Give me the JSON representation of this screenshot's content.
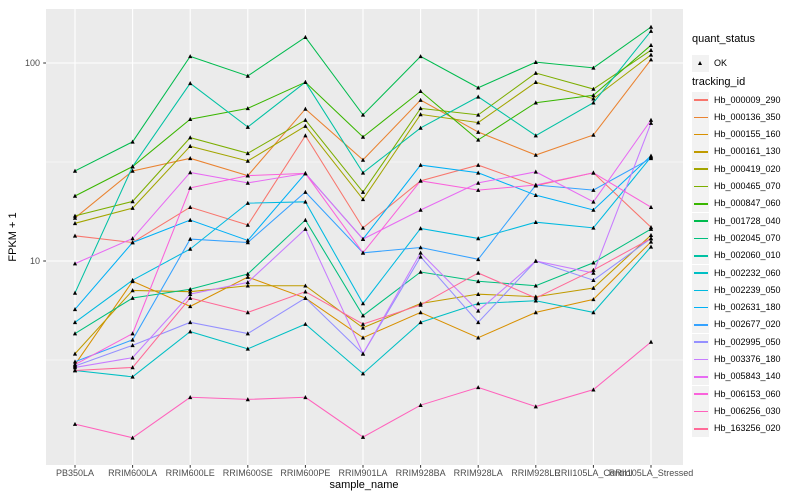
{
  "figure": {
    "background": "#FFFFFF",
    "panel_bg": "#EBEBEB",
    "grid_color": "#FFFFFF",
    "tick_mark_color": "#333333",
    "tick_label_color": "#4D4D4D",
    "point_color": "#000000"
  },
  "chart_data": {
    "type": "line",
    "title": "",
    "xlabel": "sample_name",
    "ylabel": "FPKM + 1",
    "y_scale": "log10",
    "ylim": [
      1,
      190
    ],
    "y_ticks": [
      {
        "value": 100,
        "label": "100"
      },
      {
        "value": 10,
        "label": "10"
      }
    ],
    "y_minor_gridlines": [
      3.162,
      31.62
    ],
    "grid": "on",
    "legend_position": "right",
    "categories": [
      "PB350LA",
      "RRIM600LA",
      "RRIM600LE",
      "RRIM600SE",
      "RRIM600PE",
      "RRIM901LA",
      "RRIM928BA",
      "RRIM928LA",
      "RRIM928LE",
      "RRII105LA_Control",
      "RRII105LA_Stressed"
    ],
    "legend": {
      "quant_status_title": "quant_status",
      "ok_label": "OK",
      "tracking_title": "tracking_id"
    },
    "series": [
      {
        "name": "Hb_000009_290",
        "color": "#F8766D",
        "values": [
          13.4,
          12.4,
          18.7,
          15.2,
          43,
          14.7,
          25.4,
          30.5,
          24,
          27.9,
          14.8
        ]
      },
      {
        "name": "Hb_000136_350",
        "color": "#EA8331",
        "values": [
          16.5,
          28.5,
          33,
          27,
          58.6,
          32.4,
          65,
          44.8,
          34.3,
          43.3,
          104
        ]
      },
      {
        "name": "Hb_000155_160",
        "color": "#D89000",
        "values": [
          3,
          7.9,
          5.9,
          8.3,
          6.5,
          4.1,
          5.5,
          4.1,
          5.5,
          6.4,
          12.5
        ]
      },
      {
        "name": "Hb_000161_130",
        "color": "#C09B00",
        "values": [
          3.4,
          7.1,
          7,
          7.5,
          7.5,
          4.6,
          6.1,
          6.8,
          6.6,
          7.3,
          13.5
        ]
      },
      {
        "name": "Hb_000419_020",
        "color": "#A3A500",
        "values": [
          15.5,
          18.5,
          38,
          32,
          48,
          20.5,
          55,
          50,
          80,
          66,
          110
        ]
      },
      {
        "name": "Hb_000465_070",
        "color": "#7CAE00",
        "values": [
          16.9,
          20,
          42,
          35,
          51.5,
          22.3,
          59,
          54.7,
          89,
          73.9,
          116
        ]
      },
      {
        "name": "Hb_000847_060",
        "color": "#39B600",
        "values": [
          21.3,
          30,
          52,
          59,
          80,
          42.3,
          72,
          40.9,
          63,
          68.7,
          123
        ]
      },
      {
        "name": "Hb_001728_040",
        "color": "#00BB4E",
        "values": [
          28.5,
          40,
          108,
          86,
          135,
          54.7,
          108,
          75,
          101,
          94.5,
          152
        ]
      },
      {
        "name": "Hb_002045_070",
        "color": "#00BF7D",
        "values": [
          4.3,
          6.5,
          7.2,
          8.6,
          16.1,
          5.3,
          8.8,
          7.9,
          7.5,
          9.8,
          14.5
        ]
      },
      {
        "name": "Hb_002060_010",
        "color": "#00C1A3",
        "values": [
          6.9,
          30,
          79,
          47.5,
          80,
          27.9,
          47,
          67.5,
          43,
          63,
          145
        ]
      },
      {
        "name": "Hb_002232_060",
        "color": "#00BFC4",
        "values": [
          2.8,
          2.6,
          4.4,
          3.6,
          4.8,
          2.7,
          4.9,
          6.1,
          6.3,
          5.5,
          11.8
        ]
      },
      {
        "name": "Hb_002239_050",
        "color": "#00BAE0",
        "values": [
          4.9,
          8,
          11.5,
          19.6,
          19.9,
          6.1,
          14.6,
          13,
          15.7,
          14.7,
          33.5
        ]
      },
      {
        "name": "Hb_002631_180",
        "color": "#00B0F6",
        "values": [
          5.7,
          12.4,
          16.1,
          12.7,
          27.7,
          12.9,
          30.5,
          27.9,
          21.5,
          18.1,
          34
        ]
      },
      {
        "name": "Hb_002677_020",
        "color": "#35A2FF",
        "values": [
          3.1,
          4,
          12.9,
          12.4,
          22.3,
          11,
          11.7,
          10.2,
          24.2,
          22.8,
          33
        ]
      },
      {
        "name": "Hb_002995_050",
        "color": "#9590FF",
        "values": [
          2.95,
          3.75,
          4.9,
          4.3,
          6.5,
          3.4,
          10.5,
          4.9,
          10,
          8,
          13
        ]
      },
      {
        "name": "Hb_003376_180",
        "color": "#C77CFF",
        "values": [
          2.9,
          3.25,
          6.8,
          7.8,
          14.5,
          3.4,
          11,
          5.6,
          10,
          8.7,
          49.7
        ]
      },
      {
        "name": "Hb_005843_140",
        "color": "#E76BF3",
        "values": [
          9.7,
          13,
          28,
          24.8,
          27.7,
          12.9,
          18.1,
          24.8,
          28.2,
          19.9,
          51.5
        ]
      },
      {
        "name": "Hb_006153_060",
        "color": "#FA62DB",
        "values": [
          3,
          4.3,
          23.4,
          27,
          27.7,
          11,
          25.4,
          22.8,
          24.2,
          27.9,
          18.7
        ]
      },
      {
        "name": "Hb_006256_030",
        "color": "#FF62BC",
        "values": [
          1.5,
          1.28,
          2.05,
          2,
          2.05,
          1.29,
          1.87,
          2.3,
          1.84,
          2.24,
          3.9
        ]
      },
      {
        "name": "Hb_163256_020",
        "color": "#FF6A98",
        "values": [
          2.8,
          2.9,
          6.5,
          5.5,
          7,
          4.8,
          6,
          8.7,
          6.5,
          9,
          13
        ]
      }
    ]
  }
}
